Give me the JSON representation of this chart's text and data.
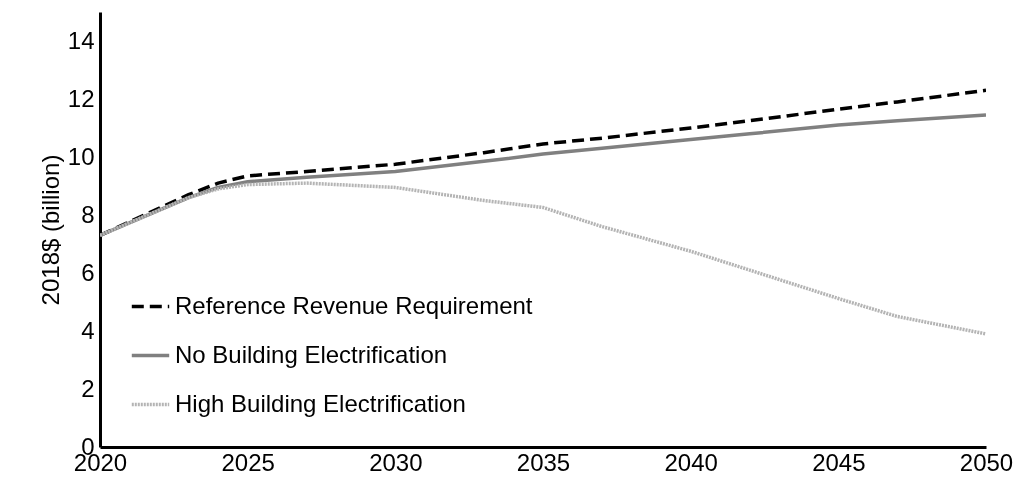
{
  "chart_data": {
    "type": "line",
    "ylabel": "2018$ (billion)",
    "x": [
      2020,
      2023,
      2024,
      2025,
      2027,
      2030,
      2033,
      2035,
      2037,
      2040,
      2042,
      2045,
      2047,
      2050
    ],
    "xlim": [
      2020,
      2050
    ],
    "xticks": [
      2020,
      2025,
      2030,
      2035,
      2040,
      2045,
      2050
    ],
    "ylim": [
      0,
      15
    ],
    "yticks": [
      0,
      2,
      4,
      6,
      8,
      10,
      12,
      14
    ],
    "grid": false,
    "legend": "bottom left",
    "marker": "none",
    "series": [
      {
        "name": "Reference Revenue Requirement",
        "color": "#000000",
        "line_style": "dashed",
        "values": [
          7.3,
          8.7,
          9.1,
          9.35,
          9.5,
          9.75,
          10.15,
          10.45,
          10.65,
          11.0,
          11.25,
          11.65,
          11.9,
          12.3
        ]
      },
      {
        "name": "No Building Electrification",
        "color": "#808080",
        "line_style": "solid",
        "values": [
          7.3,
          8.6,
          8.95,
          9.15,
          9.3,
          9.5,
          9.85,
          10.1,
          10.3,
          10.6,
          10.8,
          11.1,
          11.25,
          11.45
        ]
      },
      {
        "name": "High Building Electrification",
        "color": "#b4b4b4",
        "line_style": "dotted",
        "values": [
          7.3,
          8.6,
          8.9,
          9.05,
          9.1,
          8.95,
          8.5,
          8.26,
          7.6,
          6.75,
          6.1,
          5.12,
          4.5,
          3.9
        ]
      }
    ]
  }
}
